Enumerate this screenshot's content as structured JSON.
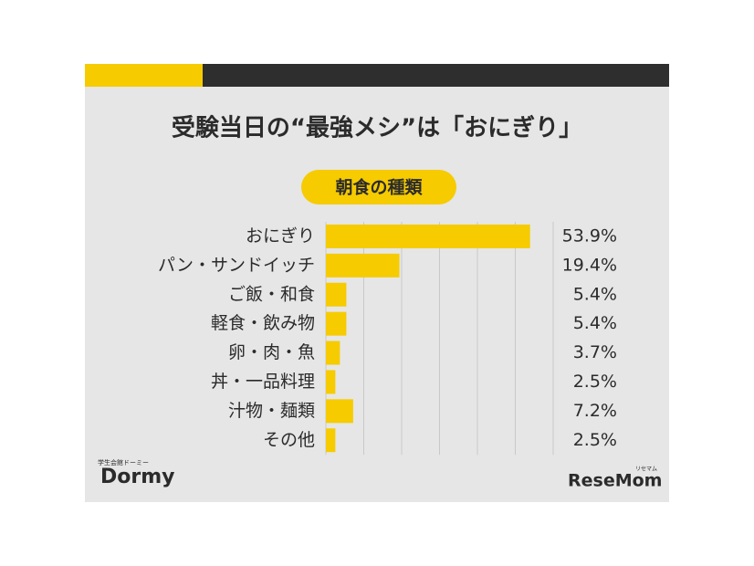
{
  "chart_data": {
    "type": "barh",
    "title": "受験当日の“最強メシ”は「おにぎり」",
    "subtitle": "朝食の種類",
    "categories": [
      "おにぎり",
      "パン・サンドイッチ",
      "ご飯・和食",
      "軽食・飲み物",
      "卵・肉・魚",
      "丼・一品料理",
      "汁物・麺類",
      "その他"
    ],
    "values": [
      53.9,
      19.4,
      5.4,
      5.4,
      3.7,
      2.5,
      7.2,
      2.5
    ],
    "value_labels": [
      "53.9%",
      "19.4%",
      "5.4%",
      "5.4%",
      "3.7%",
      "2.5%",
      "7.2%",
      "2.5%"
    ],
    "color": "#f6cb00",
    "xlim": [
      0,
      60
    ],
    "xticks": [
      0,
      10,
      20,
      30,
      40,
      50,
      60
    ],
    "grid": true
  },
  "logos": {
    "left": "Dormy",
    "left_caption": "学生会館ドーミー",
    "right": "ReseMom",
    "right_caption": "リセマム"
  }
}
